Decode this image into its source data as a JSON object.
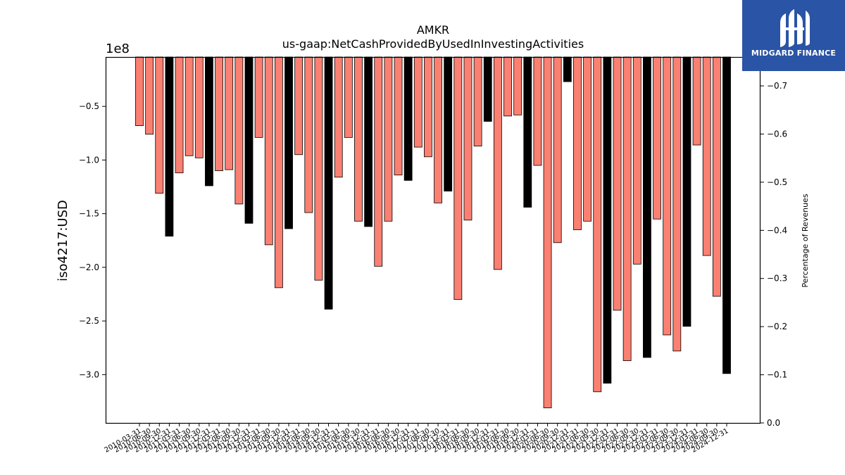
{
  "header": {
    "title": "AMKR",
    "subtitle": "us-gaap:NetCashProvidedByUsedInInvestingActivities"
  },
  "axes": {
    "ylabel": "iso4217:USD",
    "y2label": "Percentage of Revenues",
    "offset_text": "1e8"
  },
  "logo": {
    "text": "MIDGARD FINANCE"
  },
  "colors": {
    "quarter_bar": "#fa8072",
    "annual_bar": "#000000",
    "logo_bg": "#2a54a5"
  },
  "chart_data": {
    "type": "bar",
    "title": "AMKR",
    "subtitle": "us-gaap:NetCashProvidedByUsedInInvestingActivities",
    "ylabel": "iso4217:USD",
    "y2label": "Percentage of Revenues",
    "y_scale_note": "1e8",
    "ylim": [
      -3.45,
      -0.04
    ],
    "yticks": [
      -0.5,
      -1.0,
      -1.5,
      -2.0,
      -2.5,
      -3.0
    ],
    "y2lim": [
      0.0,
      0.76
    ],
    "y2ticks": [
      -0.7,
      -0.6,
      -0.5,
      -0.4,
      -0.3,
      -0.2,
      -0.1,
      0.0
    ],
    "categories": [
      "2010-03-31",
      "2010-06-30",
      "2010-09-30",
      "2010-12-31",
      "2011-03-31",
      "2011-06-30",
      "2011-09-30",
      "2011-12-31",
      "2012-03-31",
      "2012-06-30",
      "2012-09-30",
      "2012-12-31",
      "2013-03-31",
      "2013-06-30",
      "2013-09-30",
      "2013-12-31",
      "2014-03-31",
      "2014-06-30",
      "2014-09-30",
      "2014-12-31",
      "2015-03-31",
      "2015-06-30",
      "2015-09-30",
      "2015-12-31",
      "2016-03-31",
      "2016-06-30",
      "2016-09-30",
      "2016-12-31",
      "2017-03-31",
      "2017-06-30",
      "2017-09-30",
      "2017-12-31",
      "2018-03-31",
      "2018-06-30",
      "2018-09-30",
      "2018-12-31",
      "2019-03-31",
      "2019-06-30",
      "2019-09-30",
      "2019-12-31",
      "2020-03-31",
      "2020-06-30",
      "2020-09-30",
      "2020-12-31",
      "2021-03-31",
      "2021-06-30",
      "2021-09-30",
      "2021-12-31",
      "2022-03-31",
      "2022-06-30",
      "2022-09-30",
      "2022-12-31",
      "2023-03-31",
      "2023-06-30",
      "2023-09-30",
      "2023-12-31",
      "2024-03-31",
      "2024-06-30",
      "2024-09-30",
      "2024-12-31"
    ],
    "x_tick_labels": [
      "2010-03-31",
      "2010-06-30",
      "2010-09-30",
      "2010-12-31",
      "2011-03-31",
      "2011-06-30",
      "2011-09-30",
      "2011-12-31",
      "2012-03-31",
      "2012-06-30",
      "2012-09-30",
      "2012-12-31",
      "2013-03-31",
      "2013-06-30",
      "2013-09-30",
      "2013-12-31",
      "2014-03-31",
      "2014-06-30",
      "2014-09-30",
      "2014-12-31",
      "2015-03-31",
      "2015-06-30",
      "2015-09-30",
      "2015-12-31",
      "2016-03-31",
      "2016-06-30",
      "2016-09-30",
      "2016-12-31",
      "2017-03-31",
      "2017-06-30",
      "2017-09-30",
      "2017-12-31",
      "2018-03-31",
      "2018-06-30",
      "2018-09-30",
      "2018-12-31",
      "2019-03-31",
      "2019-06-30",
      "2019-09-30",
      "2019-12-31",
      "2020-03-31",
      "2020-06-30",
      "2020-09-30",
      "2020-12-31",
      "2021-03-31",
      "2021-06-30",
      "2021-09-30",
      "2021-12-31",
      "2022-03-31",
      "2022-06-30",
      "2022-09-30",
      "2022-12-31",
      "2023-03-31",
      "2023-06-30",
      "2023-09-30",
      "2023-12-31",
      "2024-03-31",
      "2024-06-30",
      "2024-09-30",
      "2024-12-31"
    ],
    "values": [
      -0.68,
      -0.76,
      -1.31,
      -1.71,
      -1.12,
      -0.96,
      -0.98,
      -1.24,
      -1.1,
      -1.09,
      -1.41,
      -1.59,
      -0.79,
      -1.79,
      -2.19,
      -1.64,
      -0.95,
      -1.49,
      -2.12,
      -2.39,
      -1.16,
      -0.79,
      -1.57,
      -1.62,
      -1.99,
      -1.57,
      -1.14,
      -1.19,
      -0.88,
      -0.97,
      -1.4,
      -1.29,
      -2.3,
      -1.56,
      -0.87,
      -0.64,
      -2.02,
      -0.59,
      -0.58,
      -1.44,
      -1.05,
      -3.31,
      -1.77,
      -0.27,
      -1.65,
      -1.57,
      -3.16,
      -3.08,
      -2.4,
      -2.87,
      -1.97,
      -2.84,
      -1.55,
      -2.63,
      -2.78,
      -2.55,
      -0.86,
      -1.89,
      -2.27,
      -2.99
    ],
    "annual": [
      false,
      false,
      false,
      true,
      false,
      false,
      false,
      true,
      false,
      false,
      false,
      true,
      false,
      false,
      false,
      true,
      false,
      false,
      false,
      true,
      false,
      false,
      false,
      true,
      false,
      false,
      false,
      true,
      false,
      false,
      false,
      true,
      false,
      false,
      false,
      true,
      false,
      false,
      false,
      true,
      false,
      false,
      false,
      true,
      false,
      false,
      false,
      true,
      false,
      false,
      false,
      true,
      false,
      false,
      false,
      true,
      false,
      false,
      false,
      true
    ]
  }
}
